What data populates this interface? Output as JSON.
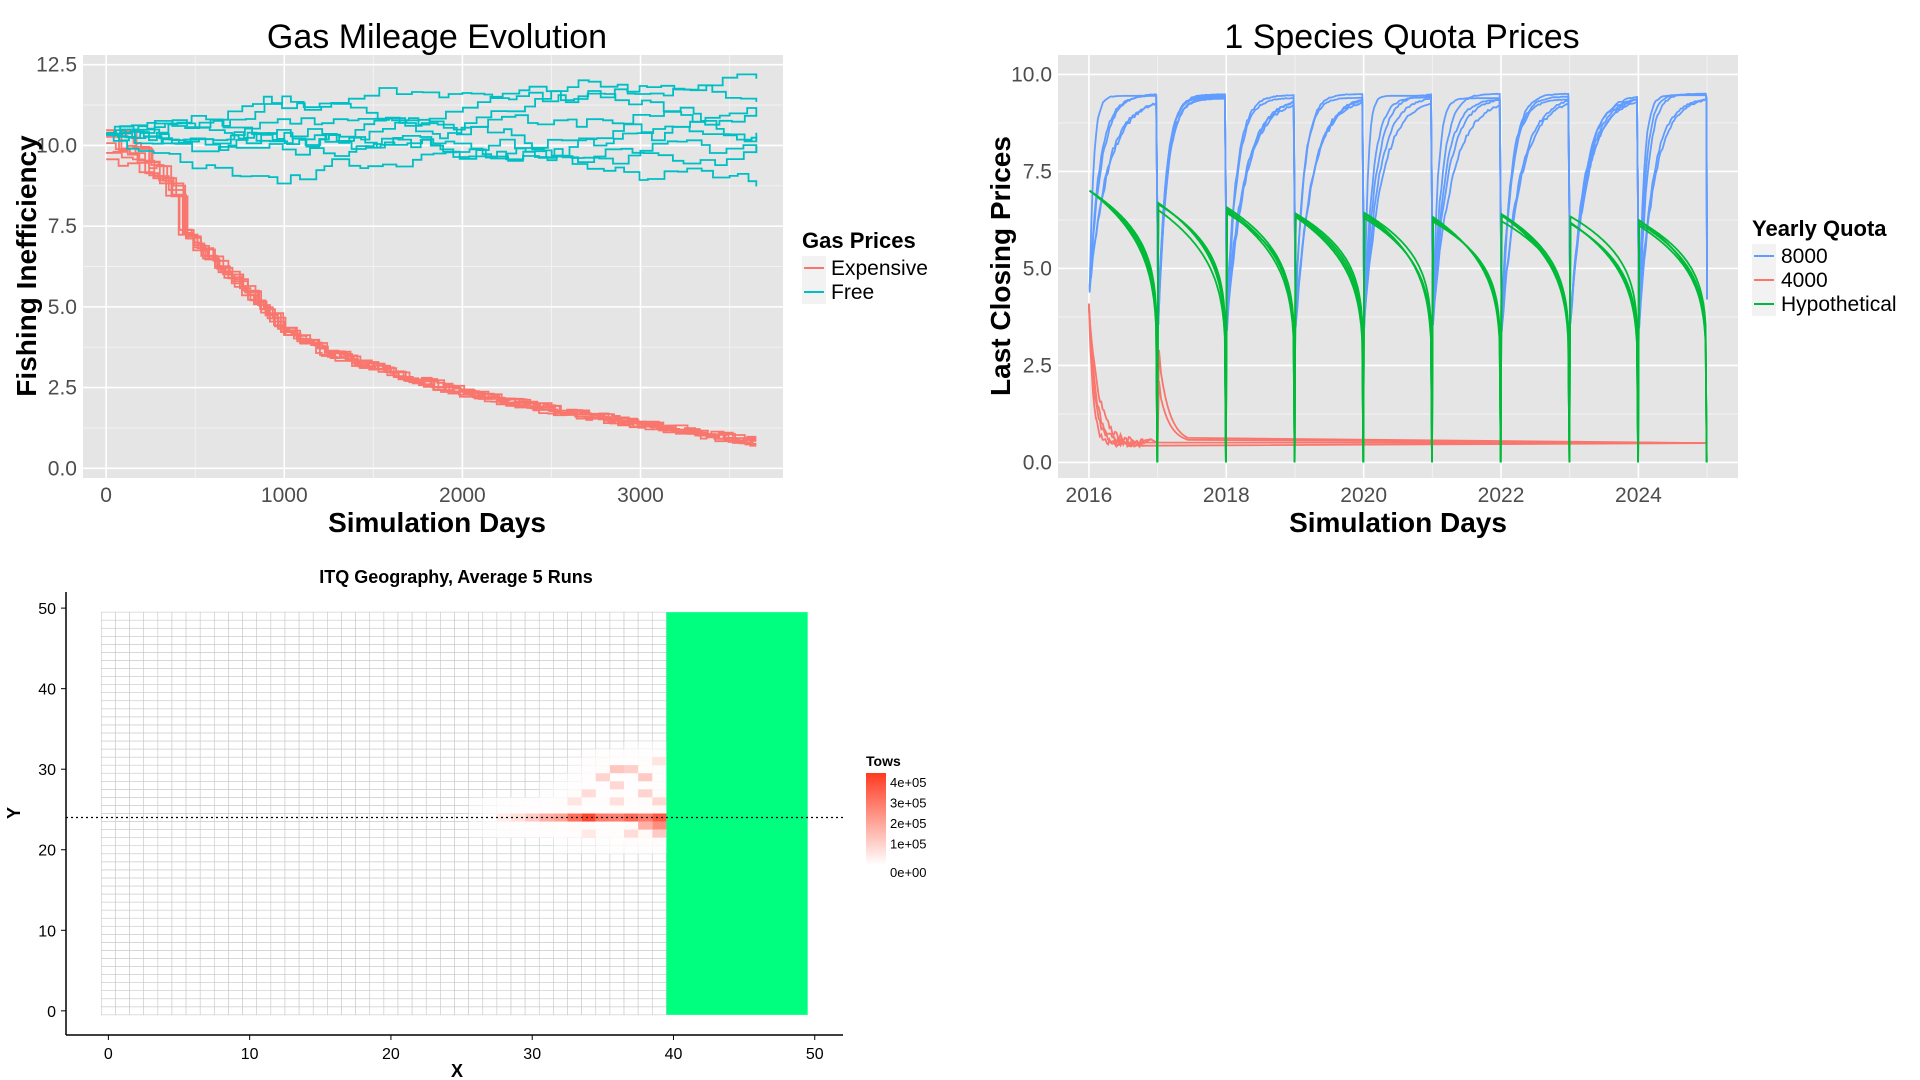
{
  "chart_data": [
    {
      "id": "gas",
      "type": "line",
      "title": "Gas Mileage Evolution",
      "xlabel": "Simulation Days",
      "ylabel": "Fishing Inefficiency",
      "xlim": [
        -130,
        3800
      ],
      "ylim": [
        -0.3,
        12.8
      ],
      "x_ticks": [
        0,
        1000,
        2000,
        3000
      ],
      "y_ticks": [
        0.0,
        2.5,
        5.0,
        7.5,
        10.0,
        12.5
      ],
      "y_tick_labels": [
        "0.0",
        "2.5",
        "5.0",
        "7.5",
        "10.0",
        "12.5"
      ],
      "legend": {
        "title": "Gas Prices",
        "position": "right"
      },
      "series": [
        {
          "name": "Expensive",
          "color": "#F8766D",
          "group": "expensive",
          "runs": 8,
          "x": [
            0,
            100,
            200,
            300,
            400,
            500,
            600,
            700,
            800,
            900,
            1000,
            1200,
            1500,
            2000,
            2500,
            3000,
            3500,
            3650
          ],
          "values": [
            10.0,
            9.8,
            9.5,
            9.0,
            8.4,
            7.8,
            7.2,
            6.6,
            6.0,
            5.4,
            4.8,
            4.1,
            3.5,
            2.6,
            2.0,
            1.5,
            1.0,
            0.9
          ]
        },
        {
          "name": "Free",
          "color": "#00BFC4",
          "group": "free",
          "runs": 9,
          "x": [
            0,
            3650
          ],
          "values": [
            10.2,
            10.3
          ]
        }
      ]
    },
    {
      "id": "quota",
      "type": "line",
      "title": "1 Species Quota Prices",
      "xlabel": "Simulation Days",
      "ylabel": "Last Closing Prices",
      "xlim": [
        2015.55,
        2025.45
      ],
      "ylim": [
        -0.4,
        10.5
      ],
      "x_ticks": [
        2016,
        2018,
        2020,
        2022,
        2024
      ],
      "y_ticks": [
        0.0,
        2.5,
        5.0,
        7.5,
        10.0
      ],
      "y_tick_labels": [
        "0.0",
        "2.5",
        "5.0",
        "7.5",
        "10.0"
      ],
      "legend": {
        "title": "Yearly Quota",
        "position": "right"
      },
      "series": [
        {
          "name": "8000",
          "color": "#619CFF",
          "pattern": "recover-to-plateau",
          "plateau": 9.4,
          "year_start_low": 4.0
        },
        {
          "name": "4000",
          "color": "#F8766D",
          "pattern": "collapse-to-floor",
          "floor": 0.5,
          "start": 4.6
        },
        {
          "name": "Hypothetical",
          "color": "#00BA38",
          "pattern": "yearly-decay",
          "year_start": [
            7.0,
            6.6,
            6.5,
            6.4,
            6.35,
            6.3,
            6.3,
            6.25,
            6.2
          ]
        }
      ]
    },
    {
      "id": "geo",
      "type": "heatmap",
      "title": "ITQ Geography, Average 5 Runs",
      "xlabel": "X",
      "ylabel": "Y",
      "xlim": [
        -3,
        52
      ],
      "ylim": [
        -3,
        52
      ],
      "x_ticks": [
        0,
        10,
        20,
        30,
        40,
        50
      ],
      "y_ticks": [
        0,
        10,
        20,
        30,
        40,
        50
      ],
      "grid_cols": 50,
      "grid_rows": 50,
      "hline_y": 24,
      "green_zone": {
        "x_from": 40,
        "x_to": 50,
        "color": "#00FF7F"
      },
      "legend": {
        "title": "Tows",
        "position": "right",
        "max": 450000,
        "labels": [
          "4e+05",
          "3e+05",
          "2e+05",
          "1e+05",
          "0e+00"
        ],
        "label_values": [
          400000,
          300000,
          200000,
          100000,
          0
        ]
      },
      "hot_cells": [
        {
          "x": 34,
          "y": 24,
          "v": 420000
        },
        {
          "x": 33,
          "y": 24,
          "v": 330000
        },
        {
          "x": 35,
          "y": 24,
          "v": 300000
        },
        {
          "x": 36,
          "y": 24,
          "v": 290000
        },
        {
          "x": 37,
          "y": 24,
          "v": 340000
        },
        {
          "x": 38,
          "y": 24,
          "v": 300000
        },
        {
          "x": 39,
          "y": 24,
          "v": 380000
        },
        {
          "x": 39,
          "y": 23,
          "v": 260000
        },
        {
          "x": 38,
          "y": 23,
          "v": 180000
        },
        {
          "x": 31,
          "y": 24,
          "v": 180000
        },
        {
          "x": 32,
          "y": 24,
          "v": 210000
        },
        {
          "x": 30,
          "y": 24,
          "v": 120000
        },
        {
          "x": 29,
          "y": 24,
          "v": 70000
        },
        {
          "x": 28,
          "y": 24,
          "v": 40000
        },
        {
          "x": 36,
          "y": 30,
          "v": 130000
        },
        {
          "x": 37,
          "y": 30,
          "v": 110000
        },
        {
          "x": 35,
          "y": 29,
          "v": 100000
        },
        {
          "x": 38,
          "y": 29,
          "v": 120000
        },
        {
          "x": 36,
          "y": 28,
          "v": 90000
        },
        {
          "x": 34,
          "y": 27,
          "v": 80000
        },
        {
          "x": 38,
          "y": 27,
          "v": 100000
        },
        {
          "x": 33,
          "y": 26,
          "v": 60000
        },
        {
          "x": 36,
          "y": 26,
          "v": 70000
        },
        {
          "x": 39,
          "y": 26,
          "v": 90000
        },
        {
          "x": 39,
          "y": 22,
          "v": 120000
        },
        {
          "x": 37,
          "y": 22,
          "v": 80000
        },
        {
          "x": 34,
          "y": 22,
          "v": 50000
        },
        {
          "x": 39,
          "y": 31,
          "v": 60000
        }
      ]
    }
  ]
}
